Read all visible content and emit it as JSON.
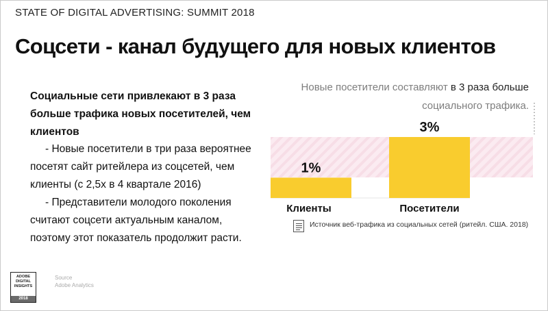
{
  "header": "STATE OF DIGITAL ADVERTISING: SUMMIT 2018",
  "title": "Соцсети - канал будущего для новых клиентов",
  "lead": "Социальные сети привлекают в 3 раза больше трафика новых посетителей, чем клиентов",
  "bullets": [
    "- Новые посетители в три раза вероятнее посетят сайт ритейлера из соцсетей, чем клиенты (с 2,5х в 4 квартале 2016)",
    "- Представители молодого поколения считают соцсети актуальным каналом, поэтому этот показатель продолжит расти."
  ],
  "logo": {
    "line1": "ADOBE",
    "line2": "DIGITAL",
    "line3": "INSIGHTS",
    "year": "2018"
  },
  "source_block": {
    "label": "Source",
    "value": "Adobe Analytics"
  },
  "chart_data": {
    "type": "bar",
    "title_part1": "Новые посетители составляют ",
    "title_part2": "в 3 раза больше",
    "title_part3": "социального трафика.",
    "categories": [
      "Клиенты",
      "Посетители"
    ],
    "values": [
      1,
      3
    ],
    "data_labels": [
      "1%",
      "3%"
    ],
    "unit": "%",
    "ylim": [
      0,
      3.3
    ],
    "source_note": "Источник веб-трафика из социальных сетей (ритейл. США. 2018)",
    "colors": {
      "bar": "#f9cc2e",
      "band": "#f7dde6",
      "band_stripe": "#fbebf1",
      "baseline": "#e6e6e6",
      "dotted": "#9a9a9a"
    }
  }
}
